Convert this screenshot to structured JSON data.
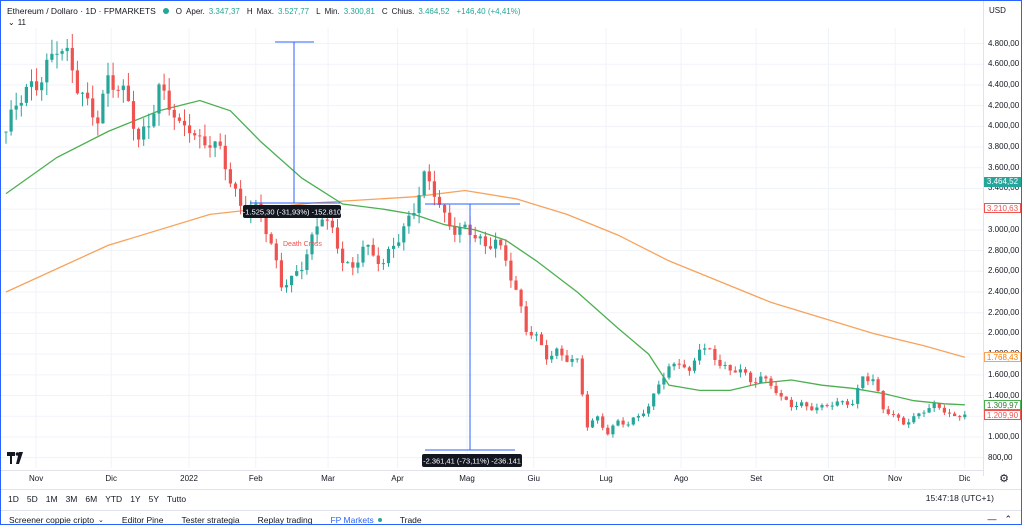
{
  "legend": {
    "symbol": "Ethereum / Dollaro · 1D · FPMARKETS",
    "open_label": "O",
    "open_prefix": "Aper.",
    "open_value": "3.347,37",
    "high_label": "H",
    "high_prefix": "Max.",
    "high_value": "3.527,77",
    "low_label": "L",
    "low_prefix": "Min.",
    "low_value": "3.300,81",
    "close_label": "C",
    "close_prefix": "Chius.",
    "close_value": "3.464,52",
    "change": "+146,40 (+4,41%)",
    "indicator_count": "11"
  },
  "price_axis": {
    "currency": "USD",
    "ticks": [
      "4.800,00",
      "4.600,00",
      "4.400,00",
      "4.200,00",
      "4.000,00",
      "3.800,00",
      "3.600,00",
      "3.400,00",
      "3.200,00",
      "3.000,00",
      "2.800,00",
      "2.600,00",
      "2.400,00",
      "2.200,00",
      "2.000,00",
      "1.800,00",
      "1.600,00",
      "1.400,00",
      "1.200,00",
      "1.000,00",
      "800,00"
    ],
    "price_labels": [
      {
        "text": "3.464,52",
        "value": 3464.52,
        "bg": "#26a69a",
        "fg": "#ffffff"
      },
      {
        "text": "3.210,63",
        "value": 3210.63,
        "bg": "#ffffff",
        "fg": "#ef5350",
        "border": "#ef5350"
      },
      {
        "text": "1.768,43",
        "value": 1768.43,
        "bg": "#ffffff",
        "fg": "#f57c00",
        "border": "#f7a35c"
      },
      {
        "text": "1.309,97",
        "value": 1309.97,
        "bg": "#ffffff",
        "fg": "#2e7d32",
        "border": "#4caf50"
      },
      {
        "text": "1.209,90",
        "value": 1209.9,
        "bg": "#ffffff",
        "fg": "#ef5350",
        "border": "#ef5350"
      }
    ]
  },
  "date_axis": {
    "labels": [
      "Nov",
      "Dic",
      "2022",
      "Feb",
      "Mar",
      "Apr",
      "Mag",
      "Giu",
      "Lug",
      "Ago",
      "Set",
      "Ott",
      "Nov",
      "Dic"
    ]
  },
  "measurements": [
    {
      "text": "-1.525,30 (-31,93%) -152.810"
    },
    {
      "text": "-2.361,41 (-73,11%) -236.141"
    }
  ],
  "annotation": {
    "text": "Death Cross"
  },
  "range_bar": {
    "buttons": [
      "1D",
      "5D",
      "1M",
      "3M",
      "6M",
      "YTD",
      "1Y",
      "5Y",
      "Tutto"
    ],
    "clock": "15:47:18 (UTC+1)"
  },
  "bottom_tabs": {
    "items": [
      "Screener coppie cripto",
      "Editor Pine",
      "Tester strategia",
      "Replay trading",
      "FP Markets",
      "Trade"
    ],
    "active": "FP Markets"
  },
  "colors": {
    "up": "#26a69a",
    "down": "#ef5350",
    "ma_short": "#4caf50",
    "ma_long": "#f7a35c",
    "measure": "#2962ff"
  },
  "chart_data": {
    "type": "candlestick",
    "symbol": "Ethereum / Dollaro",
    "interval": "1D",
    "y_range": [
      700,
      4950
    ],
    "months": [
      "Nov",
      "Dic",
      "2022",
      "Feb",
      "Mar",
      "Apr",
      "Mag",
      "Giu",
      "Lug",
      "Ago",
      "Set",
      "Ott",
      "Nov",
      "Dic"
    ],
    "close_path": [
      [
        0,
        3950
      ],
      [
        2,
        4150
      ],
      [
        4,
        4300
      ],
      [
        6,
        4450
      ],
      [
        8,
        4650
      ],
      [
        10,
        4780
      ],
      [
        12,
        4600
      ],
      [
        14,
        4350
      ],
      [
        16,
        4250
      ],
      [
        18,
        4150
      ],
      [
        20,
        4450
      ],
      [
        22,
        4300
      ],
      [
        24,
        4200
      ],
      [
        26,
        3900
      ],
      [
        28,
        4100
      ],
      [
        30,
        4350
      ],
      [
        32,
        4150
      ],
      [
        34,
        3950
      ],
      [
        36,
        4050
      ],
      [
        38,
        3900
      ],
      [
        40,
        3850
      ],
      [
        42,
        3700
      ],
      [
        44,
        3450
      ],
      [
        46,
        3250
      ],
      [
        48,
        3300
      ],
      [
        50,
        3150
      ],
      [
        52,
        2800
      ],
      [
        54,
        2450
      ],
      [
        56,
        2550
      ],
      [
        58,
        2700
      ],
      [
        60,
        2900
      ],
      [
        62,
        3100
      ],
      [
        64,
        2950
      ],
      [
        66,
        2750
      ],
      [
        68,
        2650
      ],
      [
        70,
        2850
      ],
      [
        72,
        2700
      ],
      [
        74,
        2650
      ],
      [
        76,
        2900
      ],
      [
        78,
        3050
      ],
      [
        80,
        3200
      ],
      [
        82,
        3450
      ],
      [
        84,
        3350
      ],
      [
        86,
        3150
      ],
      [
        88,
        3050
      ],
      [
        90,
        3000
      ],
      [
        92,
        2900
      ],
      [
        94,
        2800
      ],
      [
        96,
        2950
      ],
      [
        98,
        2750
      ],
      [
        100,
        2400
      ],
      [
        102,
        2000
      ],
      [
        104,
        1950
      ],
      [
        106,
        1800
      ],
      [
        108,
        1850
      ],
      [
        110,
        1750
      ],
      [
        112,
        1700
      ],
      [
        114,
        1100
      ],
      [
        116,
        1200
      ],
      [
        118,
        1050
      ],
      [
        120,
        1150
      ],
      [
        122,
        1100
      ],
      [
        124,
        1200
      ],
      [
        126,
        1300
      ],
      [
        128,
        1550
      ],
      [
        130,
        1650
      ],
      [
        132,
        1700
      ],
      [
        134,
        1600
      ],
      [
        136,
        1900
      ],
      [
        138,
        1850
      ],
      [
        140,
        1700
      ],
      [
        142,
        1600
      ],
      [
        144,
        1650
      ],
      [
        146,
        1550
      ],
      [
        148,
        1600
      ],
      [
        150,
        1500
      ],
      [
        152,
        1350
      ],
      [
        154,
        1300
      ],
      [
        156,
        1330
      ],
      [
        158,
        1300
      ],
      [
        160,
        1280
      ],
      [
        162,
        1300
      ],
      [
        164,
        1320
      ],
      [
        166,
        1350
      ],
      [
        168,
        1600
      ],
      [
        170,
        1550
      ],
      [
        172,
        1250
      ],
      [
        174,
        1200
      ],
      [
        176,
        1150
      ],
      [
        178,
        1200
      ],
      [
        180,
        1250
      ],
      [
        182,
        1280
      ],
      [
        184,
        1250
      ],
      [
        186,
        1200
      ],
      [
        188,
        1250
      ]
    ],
    "ma_short_path": [
      [
        0,
        3350
      ],
      [
        10,
        3700
      ],
      [
        20,
        3950
      ],
      [
        30,
        4150
      ],
      [
        38,
        4250
      ],
      [
        44,
        4150
      ],
      [
        50,
        3850
      ],
      [
        58,
        3500
      ],
      [
        66,
        3250
      ],
      [
        74,
        3200
      ],
      [
        80,
        3150
      ],
      [
        86,
        3050
      ],
      [
        92,
        3000
      ],
      [
        98,
        2900
      ],
      [
        104,
        2700
      ],
      [
        112,
        2400
      ],
      [
        120,
        2050
      ],
      [
        126,
        1800
      ],
      [
        130,
        1500
      ],
      [
        136,
        1450
      ],
      [
        142,
        1450
      ],
      [
        148,
        1520
      ],
      [
        154,
        1550
      ],
      [
        160,
        1500
      ],
      [
        166,
        1470
      ],
      [
        172,
        1420
      ],
      [
        178,
        1350
      ],
      [
        184,
        1320
      ],
      [
        188,
        1310
      ]
    ],
    "ma_long_path": [
      [
        0,
        2400
      ],
      [
        20,
        2850
      ],
      [
        40,
        3150
      ],
      [
        60,
        3260
      ],
      [
        80,
        3320
      ],
      [
        90,
        3380
      ],
      [
        100,
        3300
      ],
      [
        110,
        3150
      ],
      [
        120,
        2950
      ],
      [
        130,
        2700
      ],
      [
        140,
        2500
      ],
      [
        150,
        2300
      ],
      [
        160,
        2150
      ],
      [
        170,
        2000
      ],
      [
        180,
        1880
      ],
      [
        188,
        1770
      ]
    ]
  }
}
